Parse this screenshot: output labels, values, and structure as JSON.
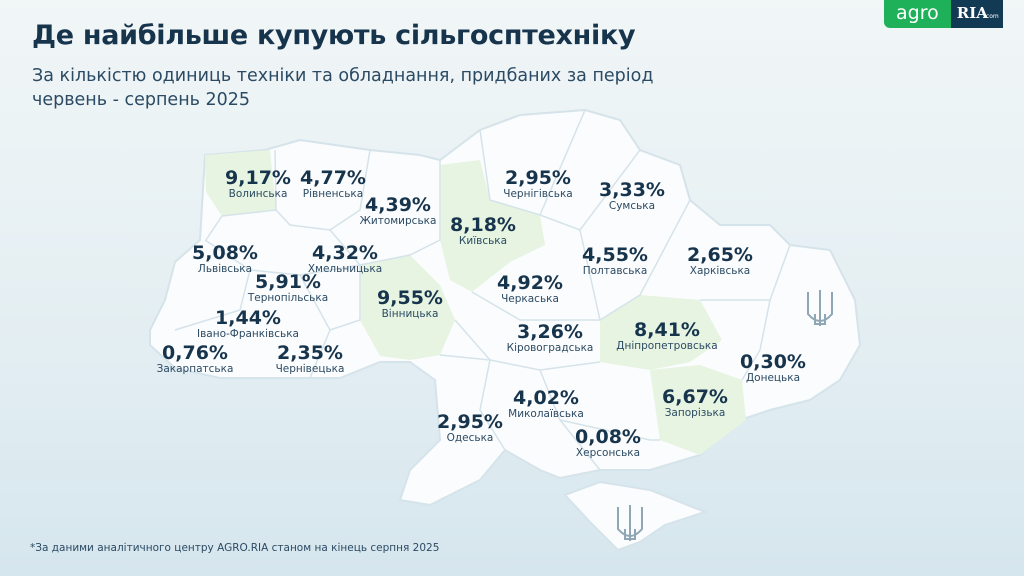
{
  "header": {
    "title": "Де найбільше купують сільгосптехніку",
    "subtitle": "За кількістю одиниць техніки та обладнання, придбаних за період червень - серпень 2025"
  },
  "logo": {
    "agro": "agro",
    "ria": "RIA",
    "com": ".com"
  },
  "colors": {
    "map": "#fbfcfd",
    "highlight": "#e6f4e1",
    "border": "#d5e3ea",
    "text": "#17344d",
    "brand_green": "#1fb15a",
    "brand_navy": "#133a55"
  },
  "regions": [
    {
      "name": "Волинська",
      "value": "9,17%",
      "highlight": true
    },
    {
      "name": "Рівненська",
      "value": "4,77%"
    },
    {
      "name": "Житомирська",
      "value": "4,39%"
    },
    {
      "name": "Київська",
      "value": "8,18%",
      "highlight": true
    },
    {
      "name": "Чернігівська",
      "value": "2,95%"
    },
    {
      "name": "Сумська",
      "value": "3,33%"
    },
    {
      "name": "Львівська",
      "value": "5,08%"
    },
    {
      "name": "Хмельницька",
      "value": "4,32%"
    },
    {
      "name": "Тернопільська",
      "value": "5,91%"
    },
    {
      "name": "Вінницька",
      "value": "9,55%",
      "highlight": true
    },
    {
      "name": "Черкаська",
      "value": "4,92%"
    },
    {
      "name": "Полтавська",
      "value": "4,55%"
    },
    {
      "name": "Харківська",
      "value": "2,65%"
    },
    {
      "name": "Івано-Франківська",
      "value": "1,44%"
    },
    {
      "name": "Кіровоградська",
      "value": "3,26%"
    },
    {
      "name": "Дніпропетровська",
      "value": "8,41%",
      "highlight": true
    },
    {
      "name": "Закарпатська",
      "value": "0,76%"
    },
    {
      "name": "Чернівецька",
      "value": "2,35%"
    },
    {
      "name": "Донецька",
      "value": "0,30%"
    },
    {
      "name": "Миколаївська",
      "value": "4,02%"
    },
    {
      "name": "Запорізька",
      "value": "6,67%",
      "highlight": true
    },
    {
      "name": "Одеська",
      "value": "2,95%"
    },
    {
      "name": "Херсонська",
      "value": "0,08%"
    }
  ],
  "footnote": "*За даними аналітичного центру AGRO.RIA станом на кінець серпня 2025"
}
